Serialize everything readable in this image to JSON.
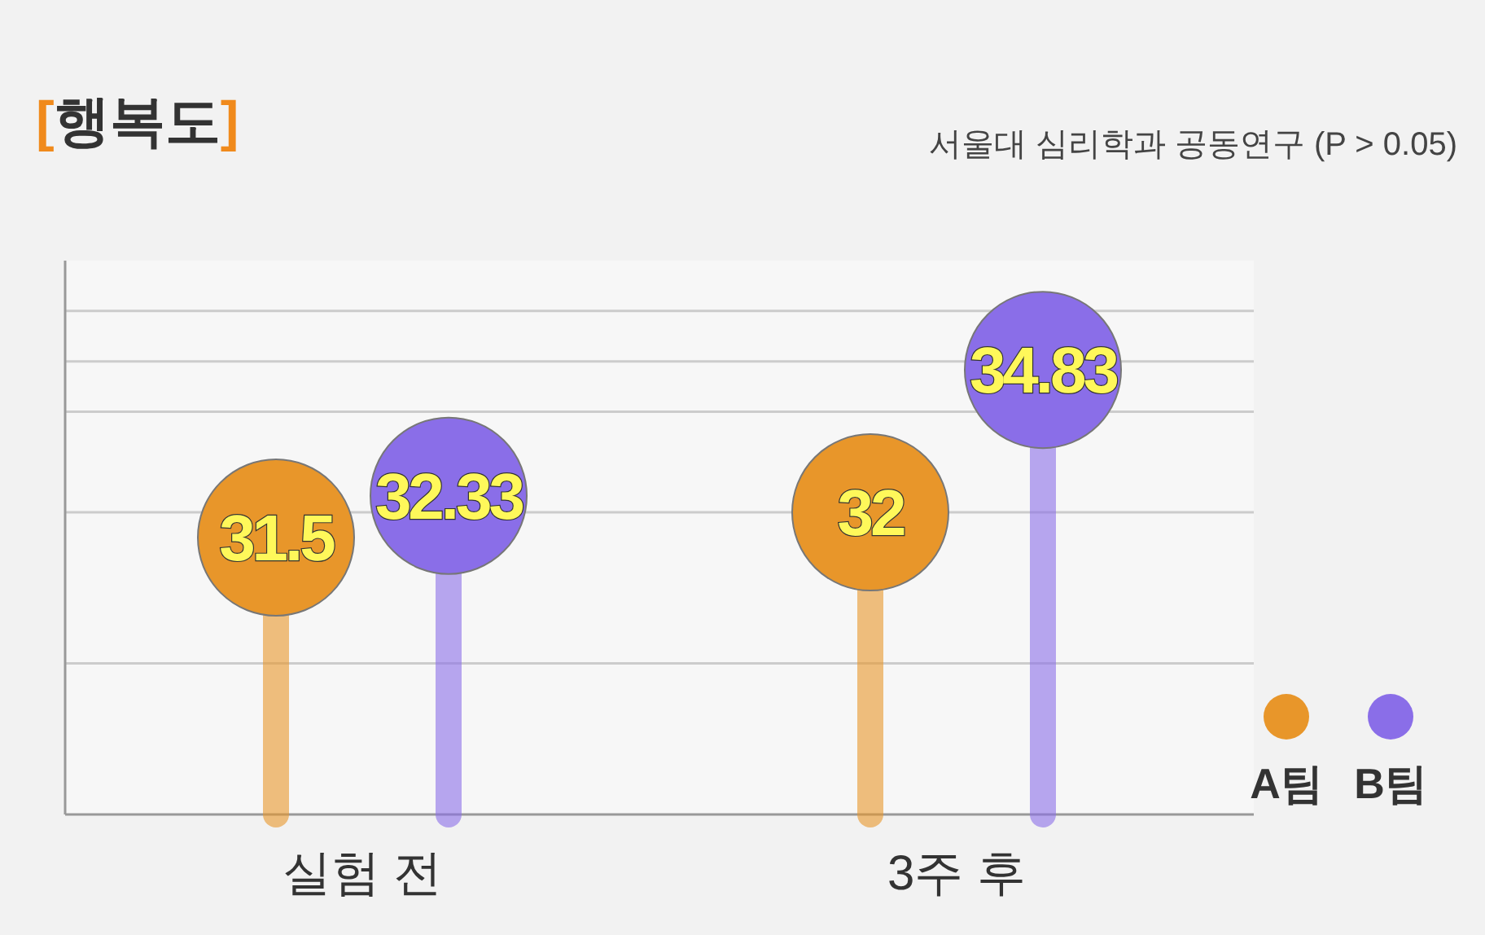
{
  "chart_data": {
    "type": "lollipop",
    "title": "[행복도]",
    "annotations": [
      "서울대 심리학과 공동연구 (P > 0.05)"
    ],
    "categories": [
      "실험 전",
      "3주 후"
    ],
    "series": [
      {
        "name": "A팀",
        "color": "#e8962a",
        "values": [
          31.5,
          32
        ]
      },
      {
        "name": "B팀",
        "color": "#8a6ee8",
        "values": [
          32.33,
          34.83
        ]
      }
    ],
    "data_labels": true,
    "ylim": [
      26,
      37
    ],
    "yticks": [
      {
        "value": 29,
        "label": null
      },
      {
        "value": 32,
        "label": null
      },
      {
        "value": 34,
        "label": null
      },
      {
        "value": 35,
        "label": null
      },
      {
        "value": 36,
        "label": null
      }
    ],
    "grid": "y",
    "legend": "bottom right",
    "tick_labels": "x"
  }
}
